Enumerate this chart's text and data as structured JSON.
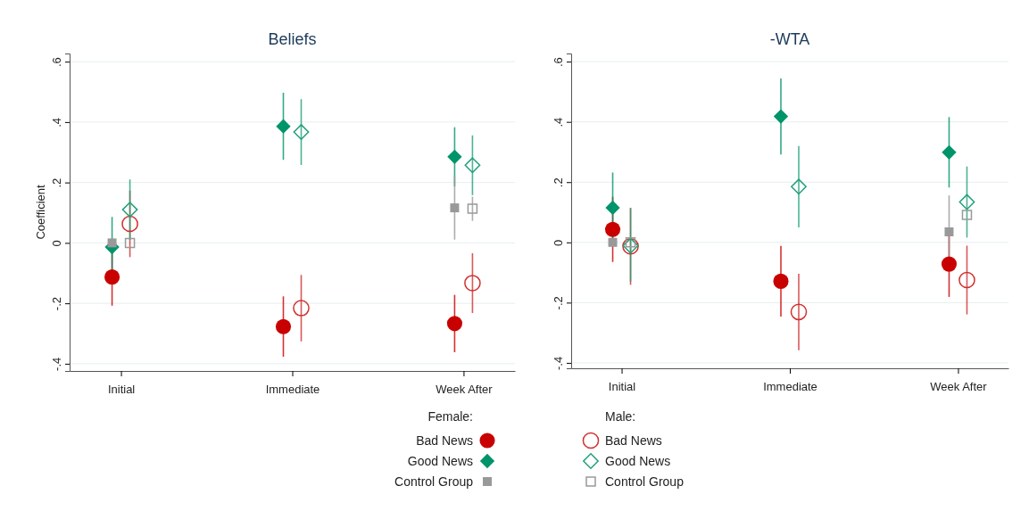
{
  "chart_data": [
    {
      "type": "scatter",
      "title": "Beliefs",
      "ylabel": "Coefficient",
      "categories": [
        "Initial",
        "Immediate",
        "Week After"
      ],
      "ylim": [
        -0.424,
        0.627
      ],
      "yticks": [
        {
          "value": -0.4,
          "label": "-.4"
        },
        {
          "value": -0.2,
          "label": "-.2"
        },
        0,
        {
          "value": 0.2,
          "label": ".2"
        },
        {
          "value": 0.4,
          "label": ".4"
        },
        {
          "value": 0.6,
          "label": ".6"
        }
      ],
      "grid": "y",
      "legend": "bottom right",
      "legend_title": "Female:",
      "series": [
        {
          "name": "Bad News",
          "color": "#c80000",
          "marker": "circle",
          "values": [
            -0.113,
            -0.277,
            -0.267
          ],
          "errors": [
            0.095,
            0.1,
            0.095
          ]
        },
        {
          "name": "Good News",
          "color": "#00946a",
          "marker": "diamond",
          "values": [
            -0.014,
            0.386,
            0.285
          ],
          "errors": [
            0.1,
            0.111,
            0.098
          ]
        },
        {
          "name": "Control Group",
          "color": "#999999",
          "marker": "square",
          "values": [
            0,
            null,
            0.116
          ],
          "errors": [
            null,
            null,
            0.105
          ]
        },
        {
          "color": "#d03030",
          "marker": "circle",
          "values": [
            0.063,
            -0.216,
            -0.133
          ],
          "errors": [
            0.11,
            0.11,
            0.099
          ]
        },
        {
          "color": "#20a07a",
          "marker": "diamond",
          "values": [
            0.11,
            0.367,
            0.257
          ],
          "errors": [
            0.1,
            0.109,
            0.099
          ]
        },
        {
          "color": "#999999",
          "marker": "square",
          "values": [
            0,
            null,
            0.113
          ],
          "errors": [
            null,
            null,
            0.04
          ]
        }
      ]
    },
    {
      "type": "scatter",
      "title": "-WTA",
      "categories": [
        "Initial",
        "Immediate",
        "Week After"
      ],
      "ylim": [
        -0.418,
        0.627
      ],
      "yticks": [
        {
          "value": -0.4,
          "label": "-.4"
        },
        {
          "value": -0.2,
          "label": "-.2"
        },
        0,
        {
          "value": 0.2,
          "label": ".2"
        },
        {
          "value": 0.4,
          "label": ".4"
        },
        {
          "value": 0.6,
          "label": ".6"
        }
      ],
      "grid": "y",
      "legend": "bottom left",
      "legend_title": "Male:",
      "series": [
        {
          "color": "#c80000",
          "marker": "circle",
          "values": [
            0.043,
            -0.129,
            -0.072
          ],
          "errors": [
            0.108,
            0.117,
            0.109
          ]
        },
        {
          "color": "#00946a",
          "marker": "diamond",
          "values": [
            0.115,
            0.418,
            0.299
          ],
          "errors": [
            0.117,
            0.126,
            0.117
          ]
        },
        {
          "color": "#999999",
          "marker": "square",
          "values": [
            0,
            null,
            0.035
          ],
          "errors": [
            null,
            null,
            0.121
          ]
        },
        {
          "name": "Bad News",
          "color": "#d03030",
          "marker": "circle",
          "values": [
            -0.013,
            -0.231,
            -0.125
          ],
          "errors": [
            0.128,
            0.127,
            0.114
          ]
        },
        {
          "name": "Good News",
          "color": "#20a07a",
          "marker": "diamond",
          "values": [
            -0.011,
            0.185,
            0.134
          ],
          "errors": [
            [
              -0.13,
              0.113
            ],
            0.135,
            0.118
          ]
        },
        {
          "name": "Control Group",
          "color": "#999999",
          "marker": "square",
          "values": [
            0,
            null,
            0.091
          ],
          "errors": [
            null,
            null,
            null
          ]
        }
      ]
    }
  ]
}
